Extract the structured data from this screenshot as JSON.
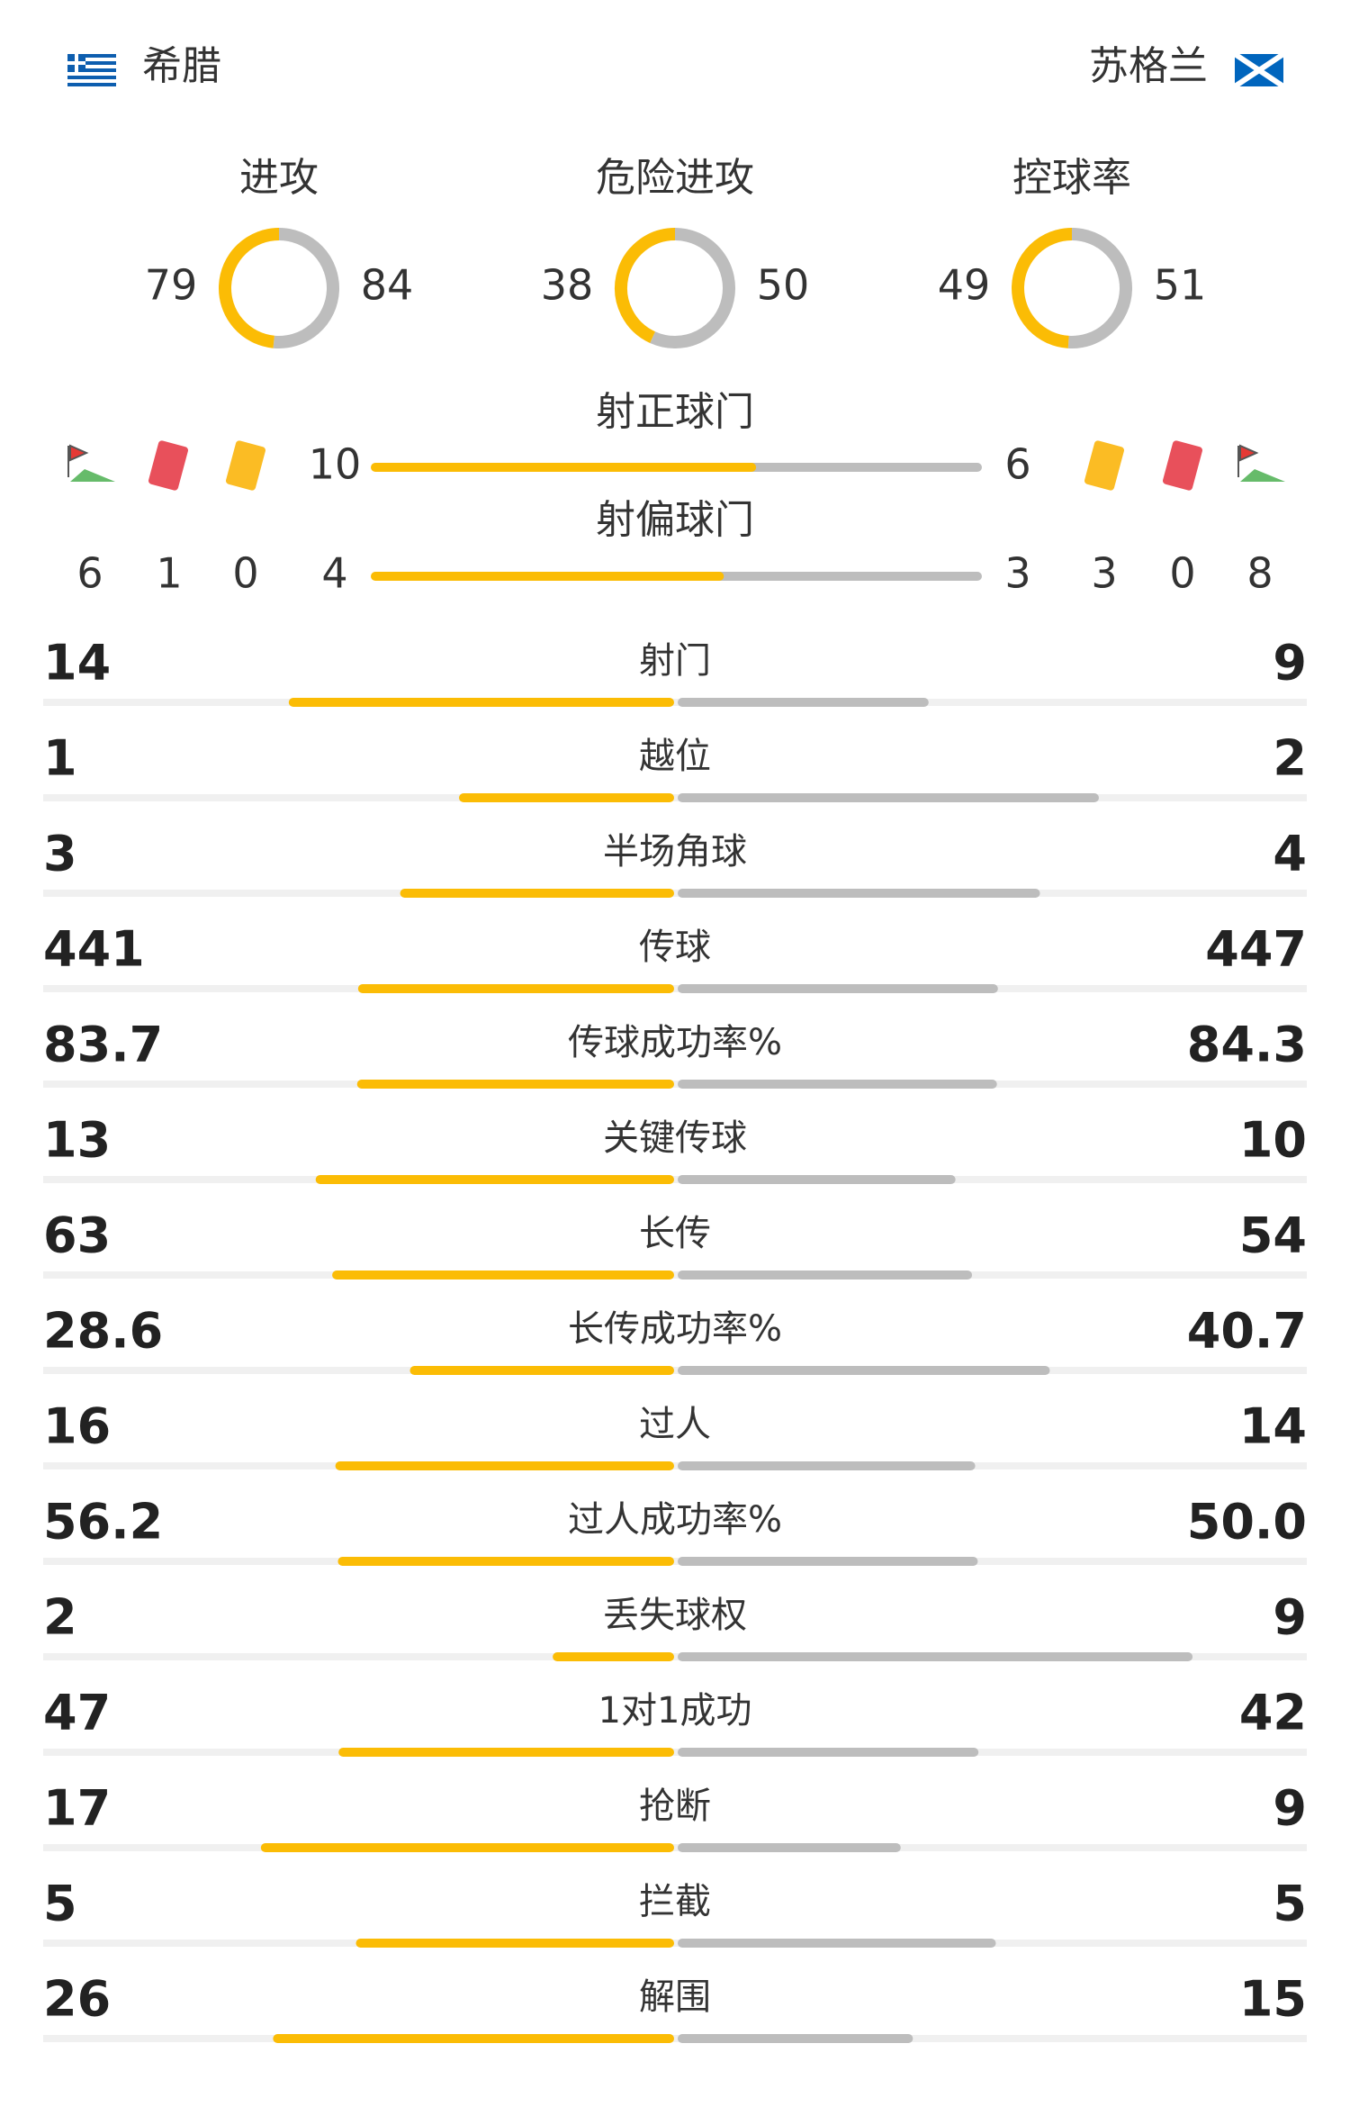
{
  "teams": {
    "home": "希腊",
    "away": "苏格兰"
  },
  "donuts": [
    {
      "title": "进攻",
      "home": 79,
      "away": 84
    },
    {
      "title": "危险进攻",
      "home": 38,
      "away": 50
    },
    {
      "title": "控球率",
      "home": 49,
      "away": 51
    }
  ],
  "shots": [
    {
      "title": "射正球门",
      "home": 10,
      "away": 6
    },
    {
      "title": "射偏球门",
      "home": 4,
      "away": 3
    }
  ],
  "discipline": {
    "home": {
      "corners": 6,
      "red": 1,
      "yellow": 0
    },
    "away": {
      "yellow": 3,
      "red": 0,
      "corners": 8
    }
  },
  "stats": [
    {
      "name": "射门",
      "home": 14,
      "away": 9
    },
    {
      "name": "越位",
      "home": 1,
      "away": 2
    },
    {
      "name": "半场角球",
      "home": 3,
      "away": 4
    },
    {
      "name": "传球",
      "home": 441,
      "away": 447
    },
    {
      "name": "传球成功率%",
      "home": 83.7,
      "away": 84.3
    },
    {
      "name": "关键传球",
      "home": 13,
      "away": 10
    },
    {
      "name": "长传",
      "home": 63,
      "away": 54
    },
    {
      "name": "长传成功率%",
      "home": 28.6,
      "away": 40.7
    },
    {
      "name": "过人",
      "home": 16,
      "away": 14
    },
    {
      "name": "过人成功率%",
      "home": 56.2,
      "away": {
        "value": 50,
        "label": "50.0"
      }
    },
    {
      "name": "丢失球权",
      "home": 2,
      "away": 9
    },
    {
      "name": "1对1成功",
      "home": 47,
      "away": 42
    },
    {
      "name": "抢断",
      "home": 17,
      "away": 9
    },
    {
      "name": "拦截",
      "home": 5,
      "away": 5
    },
    {
      "name": "解围",
      "home": 26,
      "away": 15
    }
  ]
}
